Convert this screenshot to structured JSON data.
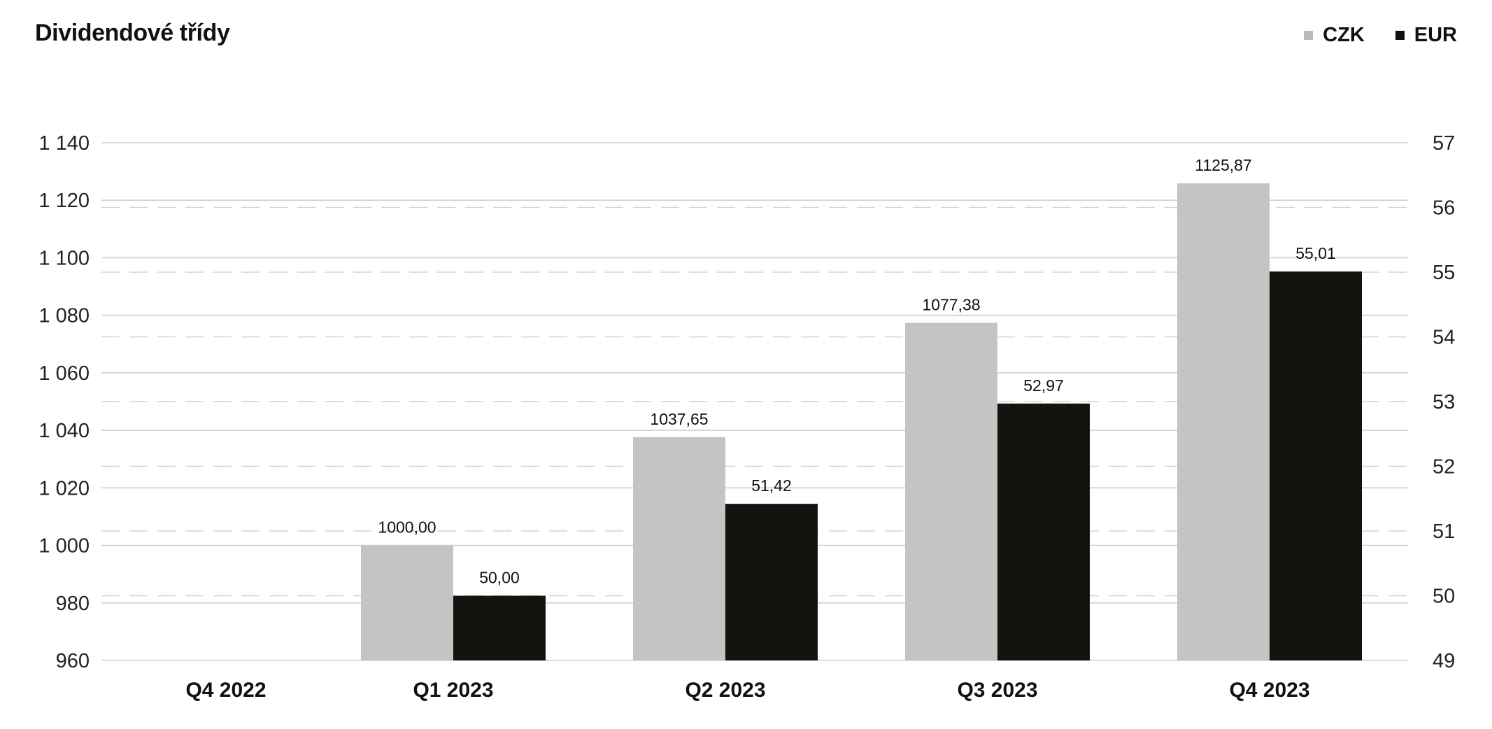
{
  "chart_data": {
    "type": "bar",
    "title": "Dividendové třídy",
    "categories": [
      "Q4 2022",
      "Q1 2023",
      "Q2 2023",
      "Q3 2023",
      "Q4 2023"
    ],
    "series": [
      {
        "name": "CZK",
        "axis": "left",
        "color": "#c4c4c4",
        "values": [
          null,
          1000.0,
          1037.65,
          1077.38,
          1125.87
        ],
        "labels": [
          "",
          "1000,00",
          "1037,65",
          "1077,38",
          "1125,87"
        ]
      },
      {
        "name": "EUR",
        "axis": "right",
        "color": "#13130f",
        "values": [
          null,
          50.0,
          51.42,
          52.97,
          55.01
        ],
        "labels": [
          "",
          "50,00",
          "51,42",
          "52,97",
          "55,01"
        ]
      }
    ],
    "y_left": {
      "min": 960,
      "max": 1140,
      "ticks": [
        960,
        980,
        1000,
        1020,
        1040,
        1060,
        1080,
        1100,
        1120,
        1140
      ],
      "tick_labels": [
        "960",
        "980",
        "1 000",
        "1 020",
        "1 040",
        "1 060",
        "1 080",
        "1 100",
        "1 120",
        "1 140"
      ]
    },
    "y_right": {
      "min": 49,
      "max": 57,
      "ticks": [
        49,
        50,
        51,
        52,
        53,
        54,
        55,
        56,
        57
      ],
      "tick_labels": [
        "49",
        "50",
        "51",
        "52",
        "53",
        "54",
        "55",
        "56",
        "57"
      ]
    },
    "grid": true,
    "legend_position": "top-right"
  }
}
